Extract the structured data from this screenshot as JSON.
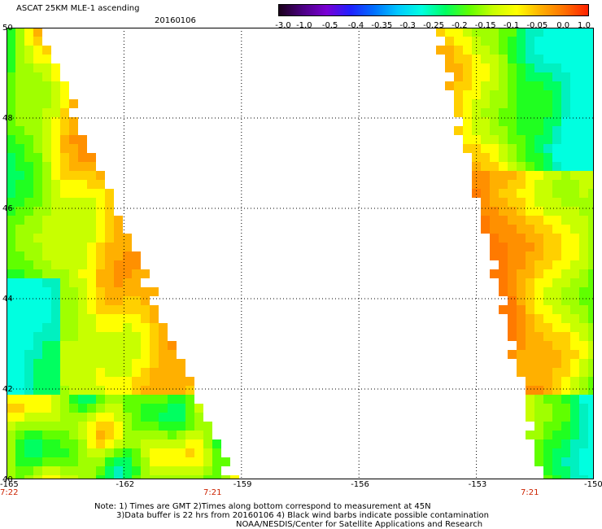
{
  "header": {
    "title": "ASCAT 25KM MLE-1 ascending",
    "date": "20160106"
  },
  "colorbar": {
    "labels": [
      "-3.0",
      "-1.0",
      "-0.5",
      "-0.4",
      "-0.35",
      "-0.3",
      "-0.25",
      "-0.2",
      "-0.15",
      "-0.1",
      "-0.05",
      "0.0",
      "1.0"
    ],
    "colors": [
      "#1a001a",
      "#4b0082",
      "#7a00d4",
      "#2020ff",
      "#0070ff",
      "#00c8ff",
      "#00ffe0",
      "#00ff60",
      "#60ff00",
      "#c8ff00",
      "#ffff00",
      "#ffb000",
      "#ff7000",
      "#ff2000"
    ]
  },
  "map": {
    "lat_labels": [
      "50",
      "48",
      "46",
      "44",
      "42",
      "40"
    ],
    "lon_labels": [
      "-165",
      "-162",
      "-159",
      "-156",
      "-153",
      "-150"
    ],
    "time_labels": [
      "7:22",
      "7:21",
      "7:21"
    ],
    "lon_range": [
      -165,
      -150
    ],
    "lat_range": [
      40,
      50
    ]
  },
  "notes": {
    "line1": "Note: 1) Times are GMT 2)Times along bottom correspond to measurement at 45N",
    "line2": "3)Data buffer is 22 hrs from 20160106 4) Black wind barbs indicate possible contamination",
    "line3": "NOAA/NESDIS/Center for Satellite Applications and Research"
  }
}
